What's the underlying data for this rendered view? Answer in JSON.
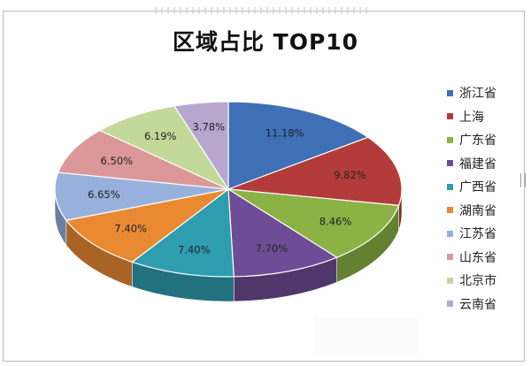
{
  "chart_data": {
    "type": "pie",
    "title": "区域占比 TOP10",
    "series": [
      {
        "name": "浙江省",
        "value": 11.18,
        "label": "11.18%",
        "color": "#3f6fb5"
      },
      {
        "name": "上海",
        "value": 9.82,
        "label": "9.82%",
        "color": "#b33c3a"
      },
      {
        "name": "广东省",
        "value": 8.46,
        "label": "8.46%",
        "color": "#8bb244"
      },
      {
        "name": "福建省",
        "value": 7.7,
        "label": "7.70%",
        "color": "#6e4c96"
      },
      {
        "name": "广西省",
        "value": 7.4,
        "label": "7.40%",
        "color": "#2f9db0"
      },
      {
        "name": "湖南省",
        "value": 7.4,
        "label": "7.40%",
        "color": "#e98a33"
      },
      {
        "name": "江苏省",
        "value": 6.65,
        "label": "6.65%",
        "color": "#98b1dc"
      },
      {
        "name": "山东省",
        "value": 6.5,
        "label": "6.50%",
        "color": "#dc9898"
      },
      {
        "name": "北京市",
        "value": 6.19,
        "label": "6.19%",
        "color": "#c3d99a"
      },
      {
        "name": "云南省",
        "value": 3.78,
        "label": "3.78%",
        "color": "#b8a6cf"
      }
    ],
    "legend_position": "right",
    "style": "3d-pie",
    "start_angle": "12 o'clock, clockwise"
  }
}
